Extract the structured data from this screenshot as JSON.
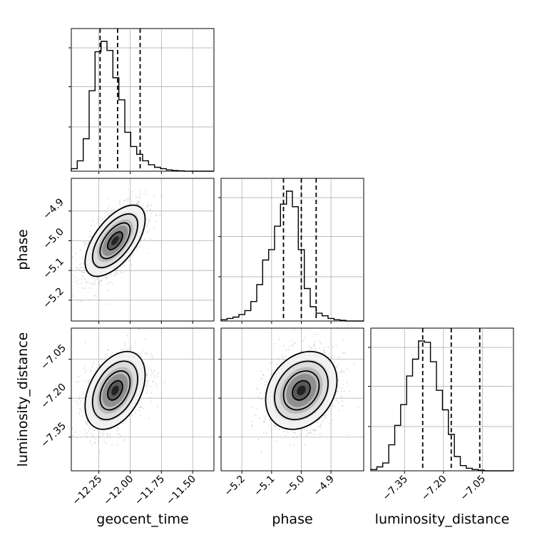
{
  "chart_data": {
    "type": "corner",
    "parameters": [
      "geocent_time",
      "phase",
      "luminosity_distance"
    ],
    "axis_labels": {
      "x": [
        "geocent_time",
        "phase",
        "luminosity_distance"
      ],
      "y": [
        "",
        "phase",
        "luminosity_distance"
      ]
    },
    "ticks": {
      "geocent_time": {
        "values": [
          -12.25,
          -12.0,
          -11.75,
          -11.5
        ],
        "labels": [
          "−12.25",
          "−12.00",
          "−11.75",
          "−11.50"
        ]
      },
      "phase": {
        "values": [
          -5.2,
          -5.1,
          -5.0,
          -4.9
        ],
        "labels": [
          "−5.2",
          "−5.1",
          "−5.0",
          "−4.9"
        ]
      },
      "luminosity_distance": {
        "values": [
          -7.35,
          -7.2,
          -7.05
        ],
        "labels": [
          "−7.35",
          "−7.20",
          "−7.05"
        ]
      }
    },
    "ranges": {
      "geocent_time": [
        -12.47,
        -11.33
      ],
      "phase": [
        -5.27,
        -4.79
      ],
      "luminosity_distance": [
        -7.48,
        -6.93
      ]
    },
    "histograms": [
      {
        "parameter": "geocent_time",
        "bin_start": -12.47,
        "bin_width": 0.0475,
        "counts": [
          2,
          8,
          25,
          62,
          92,
          100,
          93,
          72,
          55,
          30,
          19,
          13,
          8,
          5,
          3,
          2,
          1,
          0.5,
          0.3,
          0,
          0,
          0,
          0,
          0
        ],
        "quantiles": [
          -12.24,
          -12.1,
          -11.92
        ]
      },
      {
        "parameter": "phase",
        "bin_start": -5.27,
        "bin_width": 0.02,
        "counts": [
          1,
          2,
          3,
          5,
          8,
          15,
          28,
          47,
          55,
          73,
          90,
          100,
          88,
          55,
          25,
          11,
          6,
          4,
          2,
          1,
          0.5,
          0,
          0,
          0
        ],
        "quantiles": [
          -5.06,
          -5.0,
          -4.95
        ]
      },
      {
        "parameter": "luminosity_distance",
        "bin_start": -7.48,
        "bin_width": 0.023,
        "counts": [
          1,
          3,
          6,
          20,
          35,
          51,
          73,
          86,
          100,
          99,
          84,
          62,
          47,
          28,
          11,
          4,
          2,
          1,
          0.5,
          0,
          0,
          0,
          0,
          0
        ],
        "quantiles": [
          -7.28,
          -7.17,
          -7.06
        ]
      }
    ],
    "contours_2d": [
      {
        "x": "geocent_time",
        "y": "phase",
        "mean": [
          -12.12,
          -5.0
        ],
        "sd": [
          0.12,
          0.06
        ],
        "rho": 0.6
      },
      {
        "x": "geocent_time",
        "y": "luminosity_distance",
        "mean": [
          -12.12,
          -7.17
        ],
        "sd": [
          0.12,
          0.075
        ],
        "rho": 0.4
      },
      {
        "x": "phase",
        "y": "luminosity_distance",
        "mean": [
          -5.0,
          -7.17
        ],
        "sd": [
          0.06,
          0.075
        ],
        "rho": 0.25
      }
    ],
    "contour_levels_sigma": [
      0.5,
      1.0,
      1.5,
      2.0
    ],
    "grid": true
  }
}
